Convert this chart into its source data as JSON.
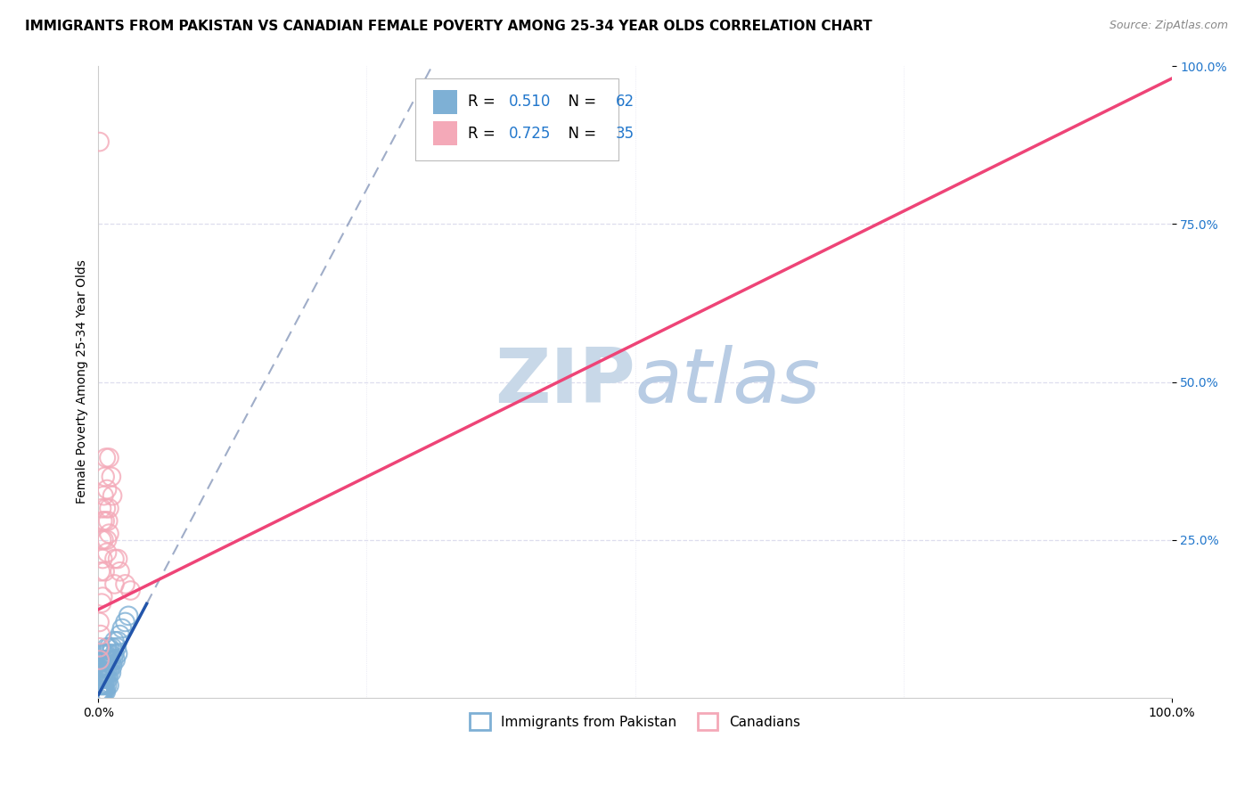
{
  "title": "IMMIGRANTS FROM PAKISTAN VS CANADIAN FEMALE POVERTY AMONG 25-34 YEAR OLDS CORRELATION CHART",
  "source": "Source: ZipAtlas.com",
  "ylabel": "Female Poverty Among 25-34 Year Olds",
  "xlim": [
    0,
    1
  ],
  "ylim": [
    0,
    1
  ],
  "blue_R": 0.51,
  "blue_N": 62,
  "pink_R": 0.725,
  "pink_N": 35,
  "legend_label_blue": "Immigrants from Pakistan",
  "legend_label_pink": "Canadians",
  "blue_scatter": [
    [
      0.0,
      0.0
    ],
    [
      0.001,
      0.01
    ],
    [
      0.001,
      0.02
    ],
    [
      0.001,
      0.03
    ],
    [
      0.002,
      0.01
    ],
    [
      0.002,
      0.02
    ],
    [
      0.002,
      0.03
    ],
    [
      0.002,
      0.04
    ],
    [
      0.003,
      0.01
    ],
    [
      0.003,
      0.02
    ],
    [
      0.003,
      0.03
    ],
    [
      0.003,
      0.05
    ],
    [
      0.004,
      0.01
    ],
    [
      0.004,
      0.02
    ],
    [
      0.004,
      0.04
    ],
    [
      0.004,
      0.06
    ],
    [
      0.005,
      0.02
    ],
    [
      0.005,
      0.03
    ],
    [
      0.005,
      0.05
    ],
    [
      0.005,
      0.07
    ],
    [
      0.006,
      0.02
    ],
    [
      0.006,
      0.04
    ],
    [
      0.006,
      0.06
    ],
    [
      0.007,
      0.03
    ],
    [
      0.007,
      0.05
    ],
    [
      0.007,
      0.07
    ],
    [
      0.008,
      0.02
    ],
    [
      0.008,
      0.04
    ],
    [
      0.008,
      0.06
    ],
    [
      0.008,
      0.08
    ],
    [
      0.009,
      0.03
    ],
    [
      0.009,
      0.05
    ],
    [
      0.009,
      0.07
    ],
    [
      0.01,
      0.04
    ],
    [
      0.01,
      0.06
    ],
    [
      0.01,
      0.08
    ],
    [
      0.011,
      0.05
    ],
    [
      0.011,
      0.07
    ],
    [
      0.012,
      0.04
    ],
    [
      0.012,
      0.06
    ],
    [
      0.013,
      0.05
    ],
    [
      0.013,
      0.08
    ],
    [
      0.014,
      0.06
    ],
    [
      0.015,
      0.07
    ],
    [
      0.015,
      0.09
    ],
    [
      0.016,
      0.06
    ],
    [
      0.017,
      0.08
    ],
    [
      0.018,
      0.07
    ],
    [
      0.018,
      0.09
    ],
    [
      0.02,
      0.1
    ],
    [
      0.022,
      0.11
    ],
    [
      0.025,
      0.12
    ],
    [
      0.028,
      0.13
    ],
    [
      0.0,
      0.01
    ],
    [
      0.001,
      0.005
    ],
    [
      0.002,
      0.005
    ],
    [
      0.003,
      0.008
    ],
    [
      0.004,
      0.008
    ],
    [
      0.005,
      0.01
    ],
    [
      0.006,
      0.01
    ],
    [
      0.007,
      0.01
    ],
    [
      0.01,
      0.02
    ]
  ],
  "pink_scatter": [
    [
      0.001,
      0.08
    ],
    [
      0.001,
      0.12
    ],
    [
      0.002,
      0.2
    ],
    [
      0.003,
      0.25
    ],
    [
      0.003,
      0.3
    ],
    [
      0.004,
      0.22
    ],
    [
      0.004,
      0.28
    ],
    [
      0.005,
      0.32
    ],
    [
      0.005,
      0.25
    ],
    [
      0.006,
      0.28
    ],
    [
      0.006,
      0.35
    ],
    [
      0.007,
      0.3
    ],
    [
      0.007,
      0.38
    ],
    [
      0.008,
      0.25
    ],
    [
      0.008,
      0.33
    ],
    [
      0.009,
      0.28
    ],
    [
      0.01,
      0.3
    ],
    [
      0.01,
      0.38
    ],
    [
      0.012,
      0.35
    ],
    [
      0.013,
      0.32
    ],
    [
      0.015,
      0.22
    ],
    [
      0.015,
      0.18
    ],
    [
      0.018,
      0.22
    ],
    [
      0.02,
      0.2
    ],
    [
      0.025,
      0.18
    ],
    [
      0.03,
      0.17
    ],
    [
      0.001,
      0.88
    ],
    [
      0.35,
      0.95
    ],
    [
      0.001,
      0.06
    ],
    [
      0.002,
      0.1
    ],
    [
      0.003,
      0.15
    ],
    [
      0.004,
      0.16
    ],
    [
      0.006,
      0.2
    ],
    [
      0.008,
      0.23
    ],
    [
      0.01,
      0.26
    ]
  ],
  "blue_color": "#7EB0D5",
  "pink_color": "#F4A9B8",
  "blue_line_color": "#2255AA",
  "pink_line_color": "#EE4477",
  "dashed_line_color": "#8899BB",
  "grid_color": "#DDDDEE",
  "background_color": "#FFFFFF",
  "watermark_text": "ZIPatlas",
  "watermark_color": "#C8D8E8",
  "title_fontsize": 11,
  "axis_fontsize": 10,
  "tick_fontsize": 10,
  "legend_fontsize": 12,
  "R_color": "#2277CC",
  "N_color": "#2277CC",
  "blue_line_x_end": 0.045,
  "pink_line_x_end": 1.0,
  "blue_line_slope": 3.2,
  "blue_line_intercept": 0.005,
  "pink_line_slope": 0.84,
  "pink_line_intercept": 0.14
}
